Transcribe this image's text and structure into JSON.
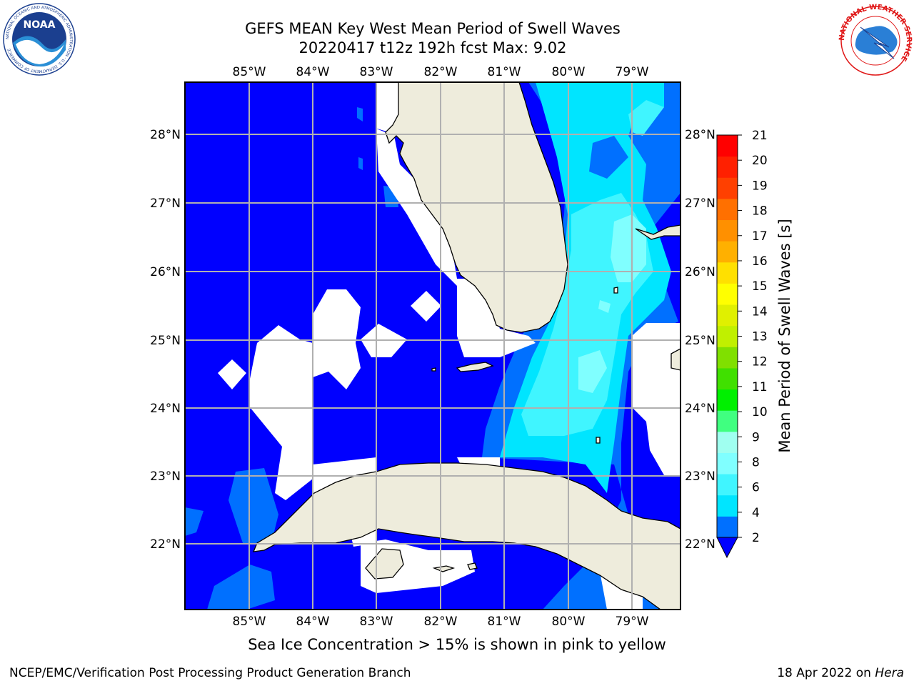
{
  "header": {
    "title_line1": "GEFS MEAN Key West Mean Period of Swell Waves",
    "title_line2": "20220417 t12z 192h fcst   Max: 9.02"
  },
  "map": {
    "lon_labels": [
      "85°W",
      "84°W",
      "83°W",
      "82°W",
      "81°W",
      "80°W",
      "79°W"
    ],
    "lat_labels": [
      "28°N",
      "27°N",
      "26°N",
      "25°N",
      "24°N",
      "23°N",
      "22°N"
    ],
    "land_color": "#eeecdc",
    "ocean_base_color": "#0000ff",
    "ice_free_color": "#ffffff"
  },
  "colorbar": {
    "label": "Mean Period of Swell Waves [s]",
    "ticks": [
      "21",
      "20",
      "19",
      "18",
      "17",
      "16",
      "15",
      "14",
      "13",
      "12",
      "11",
      "10",
      "9",
      "8",
      "6",
      "4",
      "2"
    ],
    "colors": [
      "#0070ff",
      "#00e5ff",
      "#40f5ff",
      "#80ffff",
      "#a0fff0",
      "#40ff80",
      "#00f000",
      "#40e000",
      "#80e000",
      "#c0f000",
      "#e0f000",
      "#ffff00",
      "#ffe000",
      "#ffb000",
      "#ff9000",
      "#ff7000",
      "#ff4000",
      "#ff2000",
      "#ff0000"
    ]
  },
  "footer": {
    "ice_note": "Sea Ice Concentration > 15% is shown in pink to yellow",
    "credit": "NCEP/EMC/Verification Post Processing Product Generation Branch",
    "date_prefix": "18 Apr 2022 on ",
    "date_machine": "Hera"
  },
  "logos": {
    "noaa": "NOAA",
    "noaa_ring": "NATIONAL OCEANIC AND ATMOSPHERIC ADMINISTRATION · U.S. DEPARTMENT OF COMMERCE",
    "nws_ring": "NATIONAL WEATHER SERVICE"
  }
}
